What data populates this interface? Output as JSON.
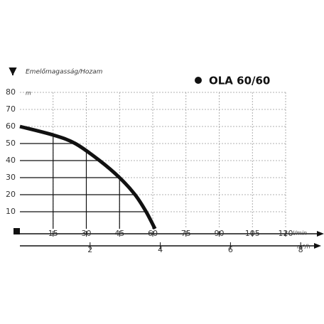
{
  "chart_data": {
    "type": "line",
    "title": "Emelőmagasság/Hozam",
    "y_unit": "m",
    "x_unit": "l/min",
    "x2_unit": "m³/h",
    "x": [
      0,
      15,
      25,
      36,
      45,
      52,
      57,
      61
    ],
    "series": [
      {
        "name": "OLA 60/60",
        "color": "#111111",
        "values": [
          60,
          55,
          50,
          40,
          30,
          20,
          10,
          0
        ]
      }
    ],
    "xlim": [
      0,
      120
    ],
    "xticks": [
      15,
      30,
      45,
      60,
      75,
      90,
      105,
      120
    ],
    "ylim": [
      0,
      80
    ],
    "yticks": [
      10,
      20,
      30,
      40,
      50,
      60,
      70,
      80
    ],
    "x2lim": [
      0,
      8.3
    ],
    "x2ticks": [
      2,
      4,
      6,
      8
    ],
    "grid": true
  }
}
